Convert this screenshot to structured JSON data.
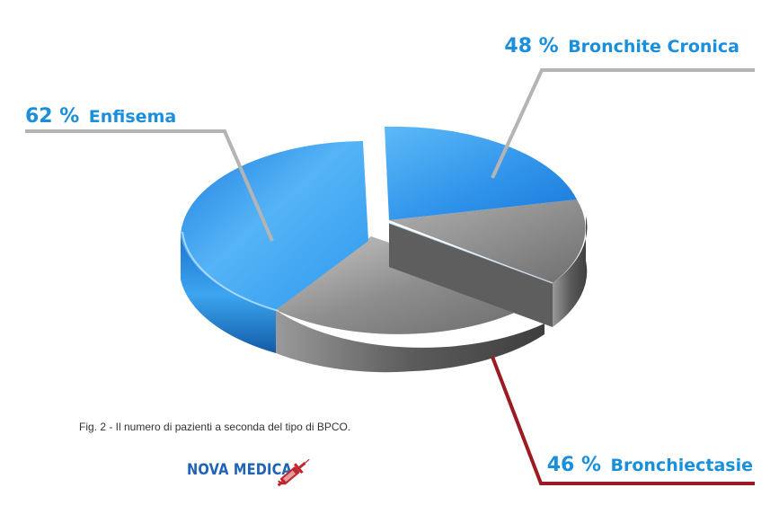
{
  "chart_data": {
    "type": "pie",
    "title": "",
    "labels": [
      "Enfisema",
      "Bronchite Cronica",
      "Bronchiectasie"
    ],
    "values": [
      62,
      48,
      46
    ],
    "value_labels": [
      "62 %",
      "48 %",
      "46 %"
    ],
    "colors": [
      "#2f8fe6",
      "#2f8fe6",
      "#8c8c8c"
    ],
    "leader_line_colors": [
      "#b4b4b4",
      "#b4b4b4",
      "#9b1b22"
    ],
    "label_text_color": "#1a8fdc"
  },
  "caption": "Fig. 2 - Il numero di pazienti a seconda del tipo di BPCO.",
  "logo": {
    "text": "NOVA MEDICA",
    "icon": "syringe-icon",
    "text_color": "#1e63b5",
    "icon_color": "#c0272d"
  }
}
